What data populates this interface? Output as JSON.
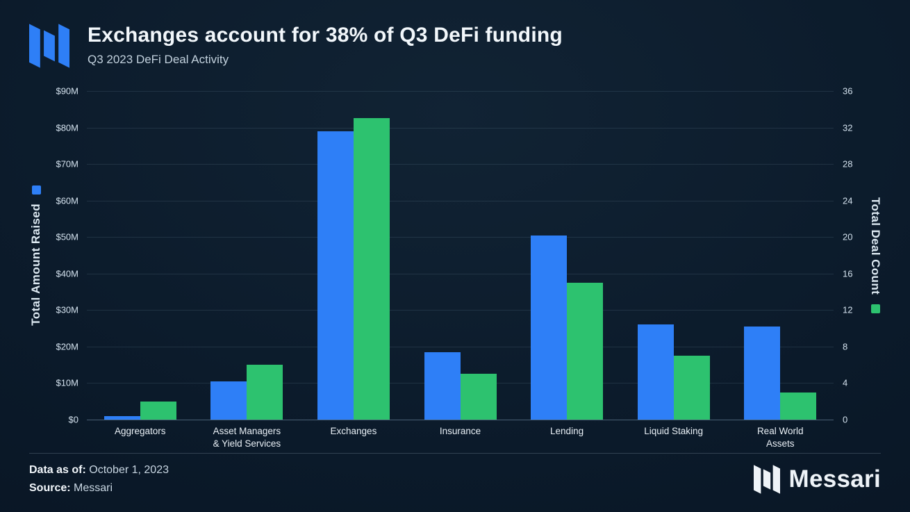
{
  "header": {
    "title": "Exchanges account for 38% of Q3 DeFi funding",
    "subtitle": "Q3 2023 DeFi Deal Activity"
  },
  "footer": {
    "data_as_of_label": "Data as of:",
    "data_as_of_value": "October 1, 2023",
    "source_label": "Source:",
    "source_value": "Messari",
    "brand": "Messari"
  },
  "colors": {
    "blue": "#2e7ff7",
    "green": "#2dc26f",
    "background": "#0b1a2a"
  },
  "chart_data": {
    "type": "bar",
    "categories": [
      "Aggregators",
      "Asset Managers\n& Yield Services",
      "Exchanges",
      "Insurance",
      "Lending",
      "Liquid Staking",
      "Real World\nAssets"
    ],
    "series": [
      {
        "name": "Total Amount Raised",
        "axis": "left",
        "color": "#2e7ff7",
        "unit": "$M",
        "values": [
          1,
          10.5,
          79,
          18.5,
          50.5,
          26,
          25.5
        ]
      },
      {
        "name": "Total Deal Count",
        "axis": "right",
        "color": "#2dc26f",
        "unit": "deals",
        "values": [
          2,
          6,
          33,
          5,
          15,
          7,
          3
        ]
      }
    ],
    "left_axis": {
      "label": "Total Amount Raised",
      "min": 0,
      "max": 90,
      "tick_step": 10,
      "ticks": [
        "$0",
        "$10M",
        "$20M",
        "$30M",
        "$40M",
        "$50M",
        "$60M",
        "$70M",
        "$80M",
        "$90M"
      ]
    },
    "right_axis": {
      "label": "Total Deal Count",
      "min": 0,
      "max": 36,
      "tick_step": 4,
      "ticks": [
        "0",
        "4",
        "8",
        "12",
        "16",
        "20",
        "24",
        "28",
        "32",
        "36"
      ]
    },
    "grid": true,
    "legend_position": "axis-titles"
  }
}
